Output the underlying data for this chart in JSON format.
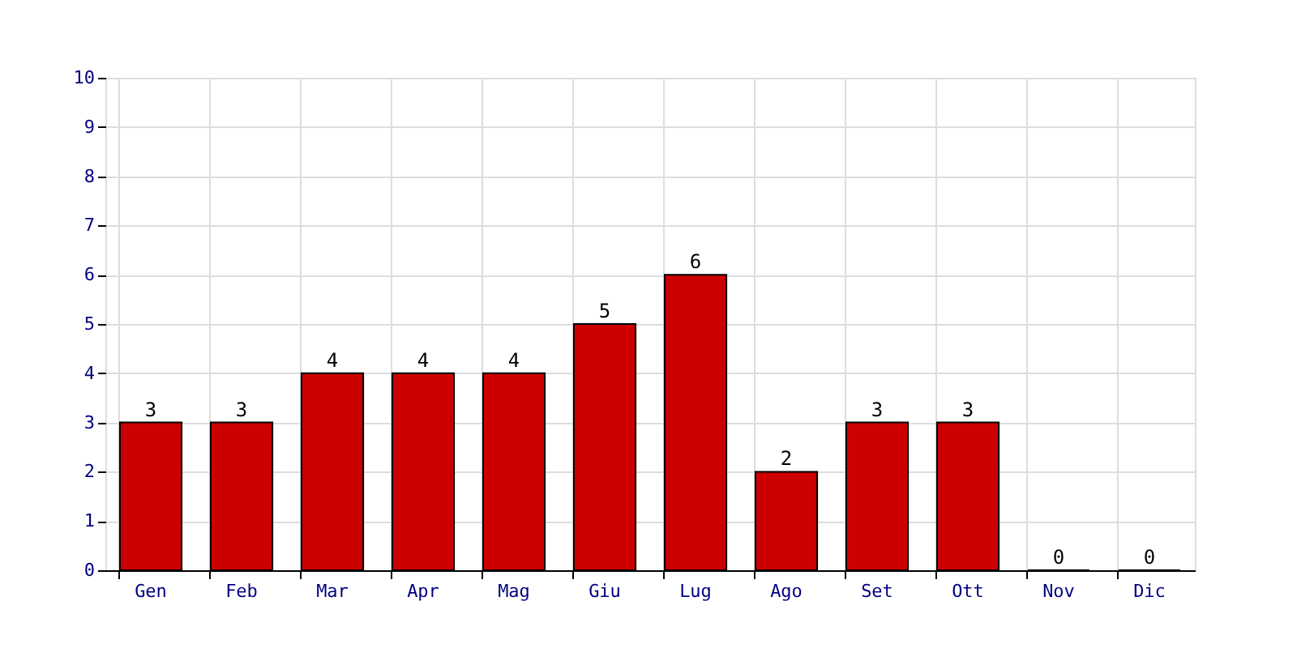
{
  "chart_data": {
    "type": "bar",
    "categories": [
      "Gen",
      "Feb",
      "Mar",
      "Apr",
      "Mag",
      "Giu",
      "Lug",
      "Ago",
      "Set",
      "Ott",
      "Nov",
      "Dic"
    ],
    "values": [
      3,
      3,
      4,
      4,
      4,
      5,
      6,
      2,
      3,
      3,
      0,
      0
    ],
    "color": "#cc0000",
    "ylim": [
      0,
      10
    ],
    "yticks": [
      0,
      1,
      2,
      3,
      4,
      5,
      6,
      7,
      8,
      9,
      10
    ],
    "grid": true,
    "data_labels": true
  }
}
